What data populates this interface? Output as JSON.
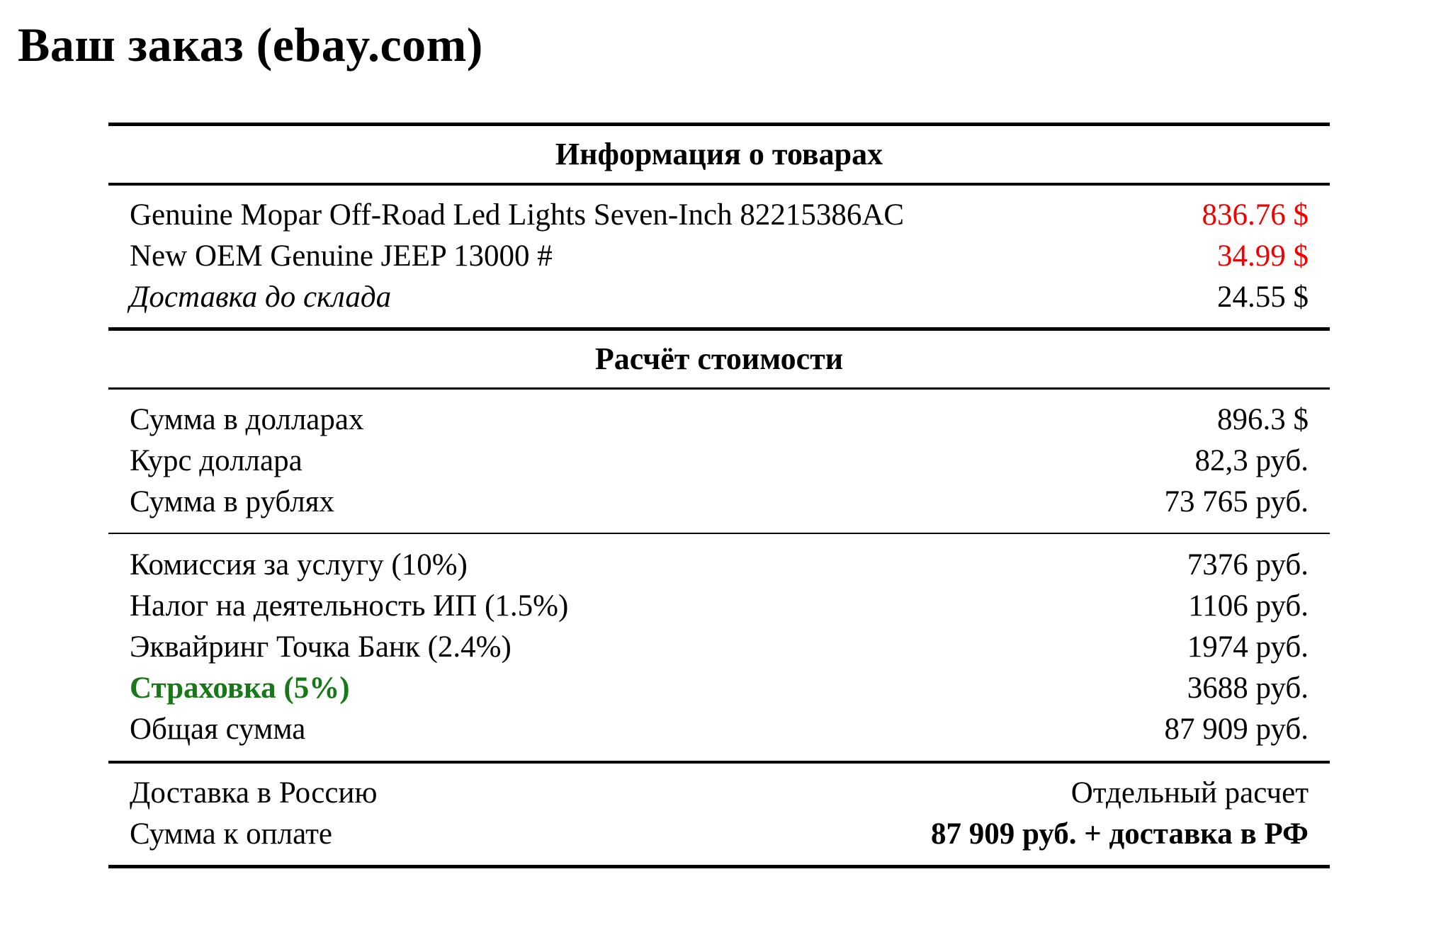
{
  "page": {
    "title": "Ваш заказ (ebay.com)"
  },
  "colors": {
    "price_red": "#f20000",
    "insurance_green": "#187818",
    "text": "#000000",
    "background": "#ffffff"
  },
  "table": {
    "products": {
      "header": "Информация о товарах",
      "rows": [
        {
          "label": "Genuine Mopar Off-Road Led Lights Seven-Inch 82215386AC",
          "value": "836.76 $"
        },
        {
          "label": "New OEM Genuine JEEP 13000 #",
          "value": "34.99 $"
        },
        {
          "label": "Доставка до склада",
          "value": "24.55 $"
        }
      ]
    },
    "calculation": {
      "header": "Расчёт стоимости",
      "rows": [
        {
          "label": "Сумма в долларах",
          "value": "896.3 $"
        },
        {
          "label": "Курс доллара",
          "value": "82,3 руб."
        },
        {
          "label": "Сумма в рублях",
          "value": "73 765 руб."
        }
      ]
    },
    "fees": {
      "rows": [
        {
          "label": "Комиссия за услугу (10%)",
          "value": "7376 руб."
        },
        {
          "label": "Налог на деятельность ИП (1.5%)",
          "value": "1106 руб."
        },
        {
          "label": "Эквайринг Точка Банк (2.4%)",
          "value": "1974 руб."
        },
        {
          "label": "Страховка (5%)",
          "value": "3688 руб."
        },
        {
          "label": "Общая сумма",
          "value": "87 909 руб."
        }
      ]
    },
    "summary": {
      "rows": [
        {
          "label": "Доставка в Россию",
          "value": "Отдельный расчет"
        },
        {
          "label": "Сумма к оплате",
          "value": "87 909 руб. + доставка в РФ"
        }
      ]
    }
  }
}
